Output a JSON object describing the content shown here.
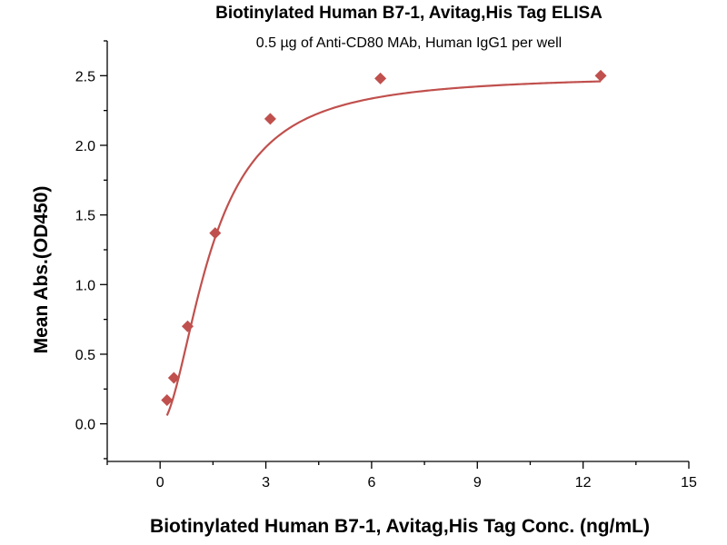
{
  "chart_data": {
    "type": "scatter",
    "title": "Biotinylated Human B7-1, Avitag,His Tag ELISA",
    "subtitle": "0.5 µg of Anti-CD80 MAb, Human IgG1 per well",
    "xlabel": "Biotinylated Human B7-1, Avitag,His Tag Conc. (ng/mL)",
    "ylabel": "Mean Abs.(OD450)",
    "xlim": [
      -1.5,
      15
    ],
    "ylim": [
      -0.27,
      2.75
    ],
    "x_ticks": [
      0,
      3,
      6,
      9,
      12,
      15
    ],
    "x_tick_labels": [
      "0",
      "3",
      "6",
      "9",
      "12",
      "15"
    ],
    "y_ticks": [
      0.0,
      0.5,
      1.0,
      1.5,
      2.0,
      2.5
    ],
    "y_tick_labels": [
      "0.0",
      "0.5",
      "1.0",
      "1.5",
      "2.0",
      "2.5"
    ],
    "grid": false,
    "legend": "none",
    "series": [
      {
        "marker": "diamond",
        "color": "#c0504d",
        "points": [
          {
            "x": 0.195,
            "y": 0.17
          },
          {
            "x": 0.391,
            "y": 0.33
          },
          {
            "x": 0.781,
            "y": 0.7
          },
          {
            "x": 1.5625,
            "y": 1.37
          },
          {
            "x": 3.125,
            "y": 2.19
          },
          {
            "x": 6.25,
            "y": 2.48
          },
          {
            "x": 12.5,
            "y": 2.5
          }
        ]
      }
    ],
    "fit_curve": {
      "color": "#c0504d",
      "bottom": 0.0,
      "top": 2.505,
      "ec50": 1.45,
      "hill": 1.85
    }
  }
}
